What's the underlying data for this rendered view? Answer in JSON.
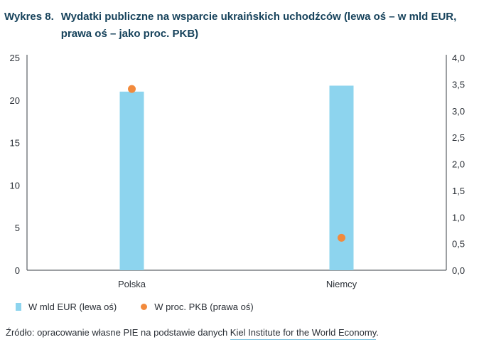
{
  "figure": {
    "label": "Wykres 8.",
    "title": "Wydatki publiczne na wsparcie ukraińskich uchodźców (lewa oś – w mld EUR, prawa oś – jako proc. PKB)"
  },
  "colors": {
    "bar": "#8dd4ee",
    "dot": "#f28a3c",
    "axis": "#3a3f46"
  },
  "legend": {
    "bar_label": "W mld EUR (lewa oś)",
    "dot_label": "W proc. PKB (prawa oś)"
  },
  "source": {
    "prefix": "Źródło: opracowanie własne PIE na podstawie danych ",
    "link_text": "Kiel Institute for the World Economy",
    "suffix": "."
  },
  "chart_data": {
    "type": "bar",
    "categories": [
      "Polska",
      "Niemcy"
    ],
    "series": [
      {
        "name": "W mld EUR (lewa oś)",
        "type": "bar",
        "axis": "left",
        "values": [
          21.0,
          21.7
        ]
      },
      {
        "name": "W proc. PKB (prawa oś)",
        "type": "scatter",
        "axis": "right",
        "values": [
          3.41,
          0.61
        ]
      }
    ],
    "y_left": {
      "lim": [
        0,
        25
      ],
      "ticks": [
        "0",
        "5",
        "10",
        "15",
        "20",
        "25"
      ]
    },
    "y_right": {
      "lim": [
        0,
        4
      ],
      "ticks": [
        "0,0",
        "0,5",
        "1,0",
        "1,5",
        "2,0",
        "2,5",
        "3,0",
        "3,5",
        "4,0"
      ]
    },
    "grid": false,
    "legend_position": "bottom-left"
  }
}
